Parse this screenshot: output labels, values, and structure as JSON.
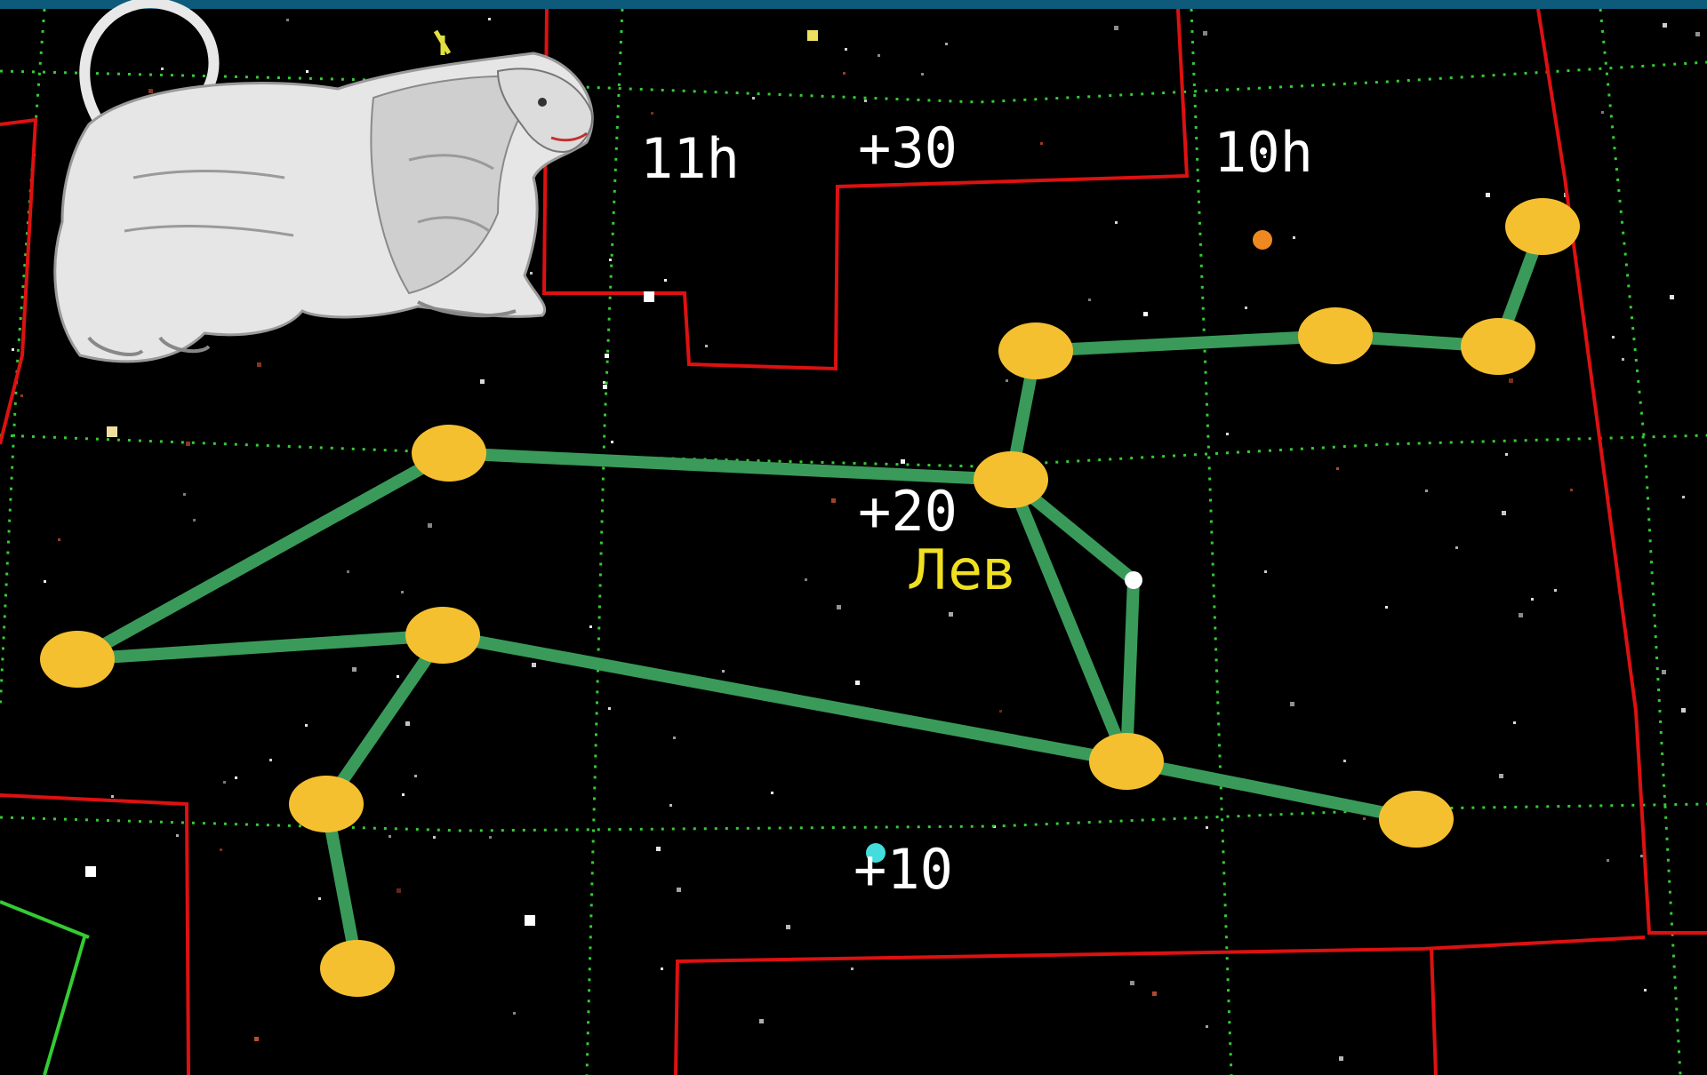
{
  "labels": {
    "ra_11h": "11h",
    "dec_30": "+30",
    "ra_10h": "10h",
    "dec_20": "+20",
    "constellation": "Лев",
    "dec_10": "+10"
  },
  "figure": {
    "name": "lion-illustration",
    "icon": "lion-icon"
  },
  "colors": {
    "background": "#000000",
    "grid": "#33cc33",
    "boundary": "#dd1111",
    "stick": "#3a9a5a",
    "star": "#f5c030",
    "label_constellation": "#f0e020",
    "label_coord": "#ffffff",
    "topbar": "#0e5a7a"
  }
}
